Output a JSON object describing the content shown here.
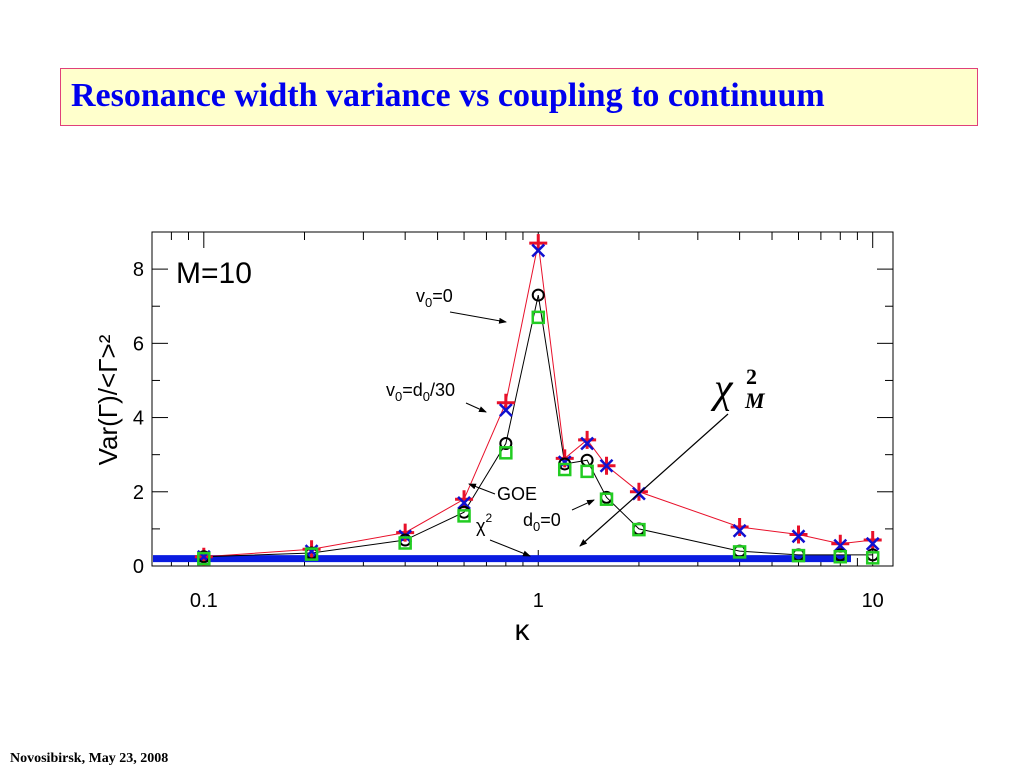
{
  "title": "Resonance width variance vs coupling to continuum",
  "footer": "Novosibirsk,  May 23,  2008",
  "chart_data": {
    "type": "scatter",
    "xscale": "log",
    "xlim": [
      0.07,
      11.5
    ],
    "ylim": [
      0,
      9
    ],
    "grid": false,
    "xlabel": "κ",
    "ylabel": "Var(Γ)/<Γ>²",
    "x_tick_labels": [
      "0.1",
      "1",
      "10"
    ],
    "y_tick_labels": [
      "0",
      "2",
      "4",
      "6",
      "8"
    ],
    "panel_label": "M=10",
    "annotations": {
      "v0_zero": {
        "base": "v",
        "sub": "0",
        "rest": "=0"
      },
      "v0_d0": {
        "base": "v",
        "sub": "0",
        "mid": "=d",
        "sub2": "0",
        "rest": "/30"
      },
      "goe": "GOE",
      "chi2": {
        "base": "χ",
        "sup": "2"
      },
      "d0_zero": {
        "base": "d",
        "sub": "0",
        "rest": "=0"
      },
      "chi2m": {
        "base": "χ",
        "sup": "2",
        "sub": "M"
      }
    },
    "chi2_level": 0.2,
    "series": [
      {
        "marker": "plus",
        "color": "#e8102a",
        "connected": true,
        "x": [
          0.1,
          0.21,
          0.4,
          0.6,
          0.8,
          1.0,
          1.2,
          1.4,
          1.6,
          2.0,
          4.0,
          6.0,
          8.0,
          10.0
        ],
        "values": [
          0.25,
          0.45,
          0.9,
          1.8,
          4.4,
          8.7,
          2.9,
          3.4,
          2.7,
          2.0,
          1.05,
          0.85,
          0.6,
          0.7
        ]
      },
      {
        "marker": "cross",
        "color": "#1010d0",
        "connected": false,
        "x": [
          0.1,
          0.21,
          0.4,
          0.6,
          0.8,
          1.0,
          1.2,
          1.4,
          1.6,
          2.0,
          4.0,
          6.0,
          8.0,
          10.0
        ],
        "values": [
          0.25,
          0.4,
          0.8,
          1.7,
          4.2,
          8.5,
          2.8,
          3.3,
          2.7,
          1.95,
          0.95,
          0.8,
          0.55,
          0.6
        ]
      },
      {
        "marker": "circle",
        "color": "#000000",
        "connected": true,
        "x": [
          0.1,
          0.21,
          0.4,
          0.6,
          0.8,
          1.0,
          1.2,
          1.4,
          1.6,
          2.0,
          4.0,
          6.0,
          8.0,
          10.0
        ],
        "values": [
          0.25,
          0.35,
          0.7,
          1.45,
          3.3,
          7.3,
          2.75,
          2.85,
          1.85,
          1.0,
          0.4,
          0.3,
          0.3,
          0.3
        ]
      },
      {
        "marker": "square",
        "color": "#22cc22",
        "connected": false,
        "x": [
          0.1,
          0.21,
          0.4,
          0.6,
          0.8,
          1.0,
          1.2,
          1.4,
          1.6,
          2.0,
          4.0,
          6.0,
          8.0,
          10.0
        ],
        "values": [
          0.2,
          0.32,
          0.62,
          1.35,
          3.05,
          6.7,
          2.6,
          2.55,
          1.8,
          0.98,
          0.38,
          0.28,
          0.25,
          0.22
        ]
      }
    ]
  }
}
